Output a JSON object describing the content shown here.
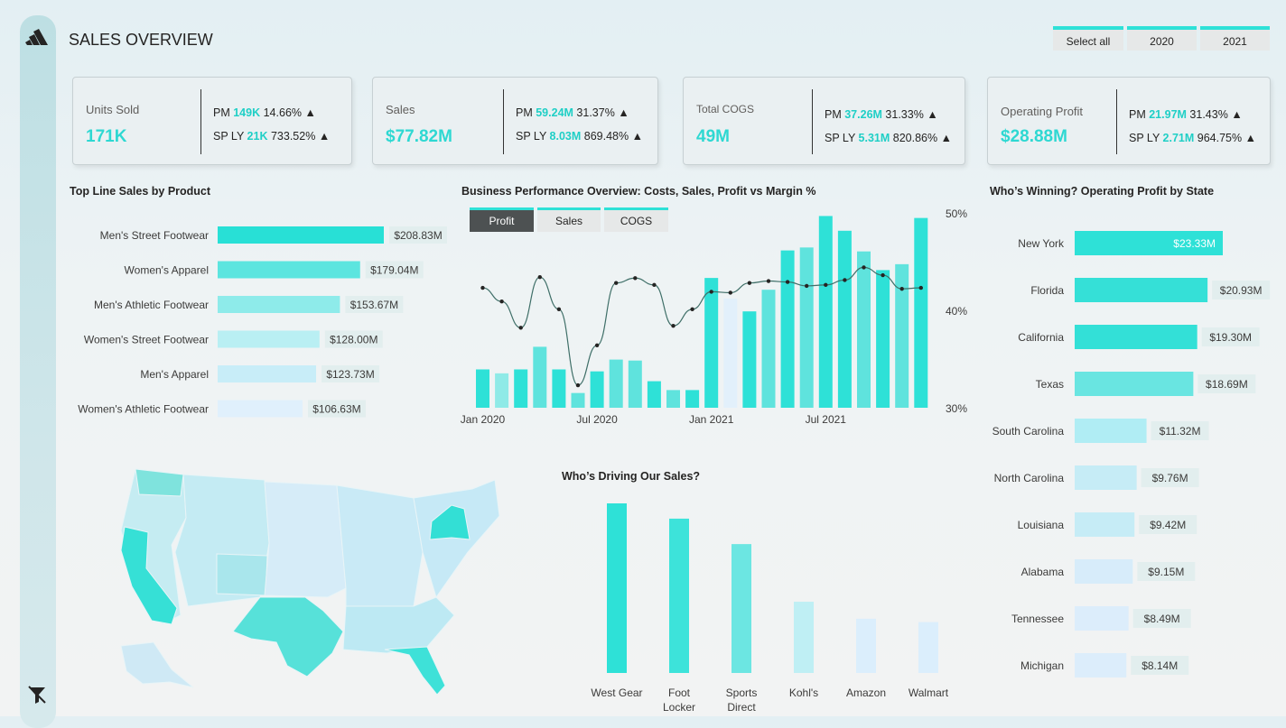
{
  "header": {
    "title": "SALES OVERVIEW",
    "slicers": [
      "Select all",
      "2020",
      "2021"
    ]
  },
  "kpis": [
    {
      "label": "Units Sold",
      "value": "171K",
      "pm_label": "PM",
      "pm_value": "149K",
      "pm_pct": "14.66%",
      "sp_label": "SP LY",
      "sp_value": "21K",
      "sp_pct": "733.52%"
    },
    {
      "label": "Sales",
      "value": "$77.82M",
      "pm_label": "PM",
      "pm_value": "59.24M",
      "pm_pct": "31.37%",
      "sp_label": "SP LY",
      "sp_value": "8.03M",
      "sp_pct": "869.48%"
    },
    {
      "label": "Total COGS",
      "value": "49M",
      "pm_label": "PM",
      "pm_value": "37.26M",
      "pm_pct": "31.33%",
      "sp_label": "SP LY",
      "sp_value": "5.31M",
      "sp_pct": "820.86%"
    },
    {
      "label": "Operating Profit",
      "value": "$28.88M",
      "pm_label": "PM",
      "pm_value": "21.97M",
      "pm_pct": "31.43%",
      "sp_label": "SP LY",
      "sp_value": "2.71M",
      "sp_pct": "964.75%"
    }
  ],
  "arrow": "🠕",
  "perf_tabs": [
    "Profit",
    "Sales",
    "COGS"
  ],
  "colors": {
    "accent": "#2ee1d7",
    "dark": "#4d5152"
  },
  "chart_data": [
    {
      "id": "product",
      "type": "bar",
      "orientation": "horizontal",
      "title": "Top Line Sales by Product",
      "categories": [
        "Men's Street Footwear",
        "Women's Apparel",
        "Men's Athletic Footwear",
        "Women's Street Footwear",
        "Men's Apparel",
        "Women's Athletic Footwear"
      ],
      "values": [
        208.83,
        179.04,
        153.67,
        128.0,
        123.73,
        106.63
      ],
      "labels": [
        "$208.83M",
        "$179.04M",
        "$153.67M",
        "$128.00M",
        "$123.73M",
        "$106.63M"
      ],
      "unit": "$M"
    },
    {
      "id": "performance",
      "type": "bar",
      "title": "Business Performance Overview: Costs, Sales, Profit vs Margin %",
      "x_ticks": [
        "Jan 2020",
        "Jul 2020",
        "Jan 2021",
        "Jul 2021"
      ],
      "y2_ticks": [
        "50%",
        "40%",
        "30%"
      ],
      "y2lim": [
        30,
        50
      ],
      "months": [
        "Jan 2020",
        "Feb 2020",
        "Mar 2020",
        "Apr 2020",
        "May 2020",
        "Jun 2020",
        "Jul 2020",
        "Aug 2020",
        "Sep 2020",
        "Oct 2020",
        "Nov 2020",
        "Dec 2020",
        "Jan 2021",
        "Feb 2021",
        "Mar 2021",
        "Apr 2021",
        "May 2021",
        "Jun 2021",
        "Jul 2021",
        "Aug 2021",
        "Sep 2021",
        "Oct 2021",
        "Nov 2021",
        "Dec 2021"
      ],
      "bar_values_relative": [
        0.195,
        0.175,
        0.195,
        0.31,
        0.195,
        0.075,
        0.185,
        0.245,
        0.24,
        0.135,
        0.09,
        0.09,
        0.66,
        0.555,
        0.49,
        0.6,
        0.8,
        0.815,
        0.975,
        0.9,
        0.795,
        0.7,
        0.73,
        0.965
      ],
      "bar_shades": [
        "#2ee1d7",
        "#8feae7",
        "#2ee1d7",
        "#5fe3dd",
        "#2ee1d7",
        "#5fe3dd",
        "#2ee1d7",
        "#5fe3dd",
        "#5fe3dd",
        "#2ee1d7",
        "#5fe3dd",
        "#2ee1d7",
        "#2ee1d7",
        "#e2f0fb",
        "#2ee1d7",
        "#5fe3dd",
        "#2ee1d7",
        "#5fe3dd",
        "#2ee1d7",
        "#2ee1d7",
        "#5fe3dd",
        "#2ee1d7",
        "#5fe3dd",
        "#2ee1d7"
      ],
      "margin_pct": [
        42.4,
        41.0,
        38.3,
        43.5,
        40.2,
        32.4,
        36.5,
        42.9,
        43.4,
        42.7,
        38.5,
        40.2,
        42.0,
        41.9,
        42.9,
        43.1,
        43.0,
        42.6,
        42.7,
        43.2,
        44.5,
        43.7,
        42.3,
        42.4
      ]
    },
    {
      "id": "state",
      "type": "bar",
      "orientation": "horizontal",
      "title": "Who’s Winning? Operating Profit by State",
      "categories": [
        "New York",
        "Florida",
        "California",
        "Texas",
        "South Carolina",
        "North Carolina",
        "Louisiana",
        "Alabama",
        "Tennessee",
        "Michigan"
      ],
      "values": [
        23.33,
        20.93,
        19.3,
        18.69,
        11.32,
        9.76,
        9.42,
        9.15,
        8.49,
        8.14
      ],
      "labels": [
        "$23.33M",
        "$20.93M",
        "$19.30M",
        "$18.69M",
        "$11.32M",
        "$9.76M",
        "$9.42M",
        "$9.15M",
        "$8.49M",
        "$8.14M"
      ],
      "unit": "$M"
    },
    {
      "id": "retailer",
      "type": "bar",
      "title": "Who’s Driving Our Sales?",
      "categories": [
        [
          "West Gear"
        ],
        [
          "Foot",
          "Locker"
        ],
        [
          "Sports",
          "Direct"
        ],
        [
          "Kohl's"
        ],
        [
          "Amazon"
        ],
        [
          "Walmart"
        ]
      ],
      "values_relative": [
        1.0,
        0.91,
        0.76,
        0.42,
        0.32,
        0.3
      ],
      "colors": [
        "#2ee1d7",
        "#3de3da",
        "#6ce6e2",
        "#bfeff4",
        "#dbeefc",
        "#dbeefc"
      ]
    }
  ]
}
